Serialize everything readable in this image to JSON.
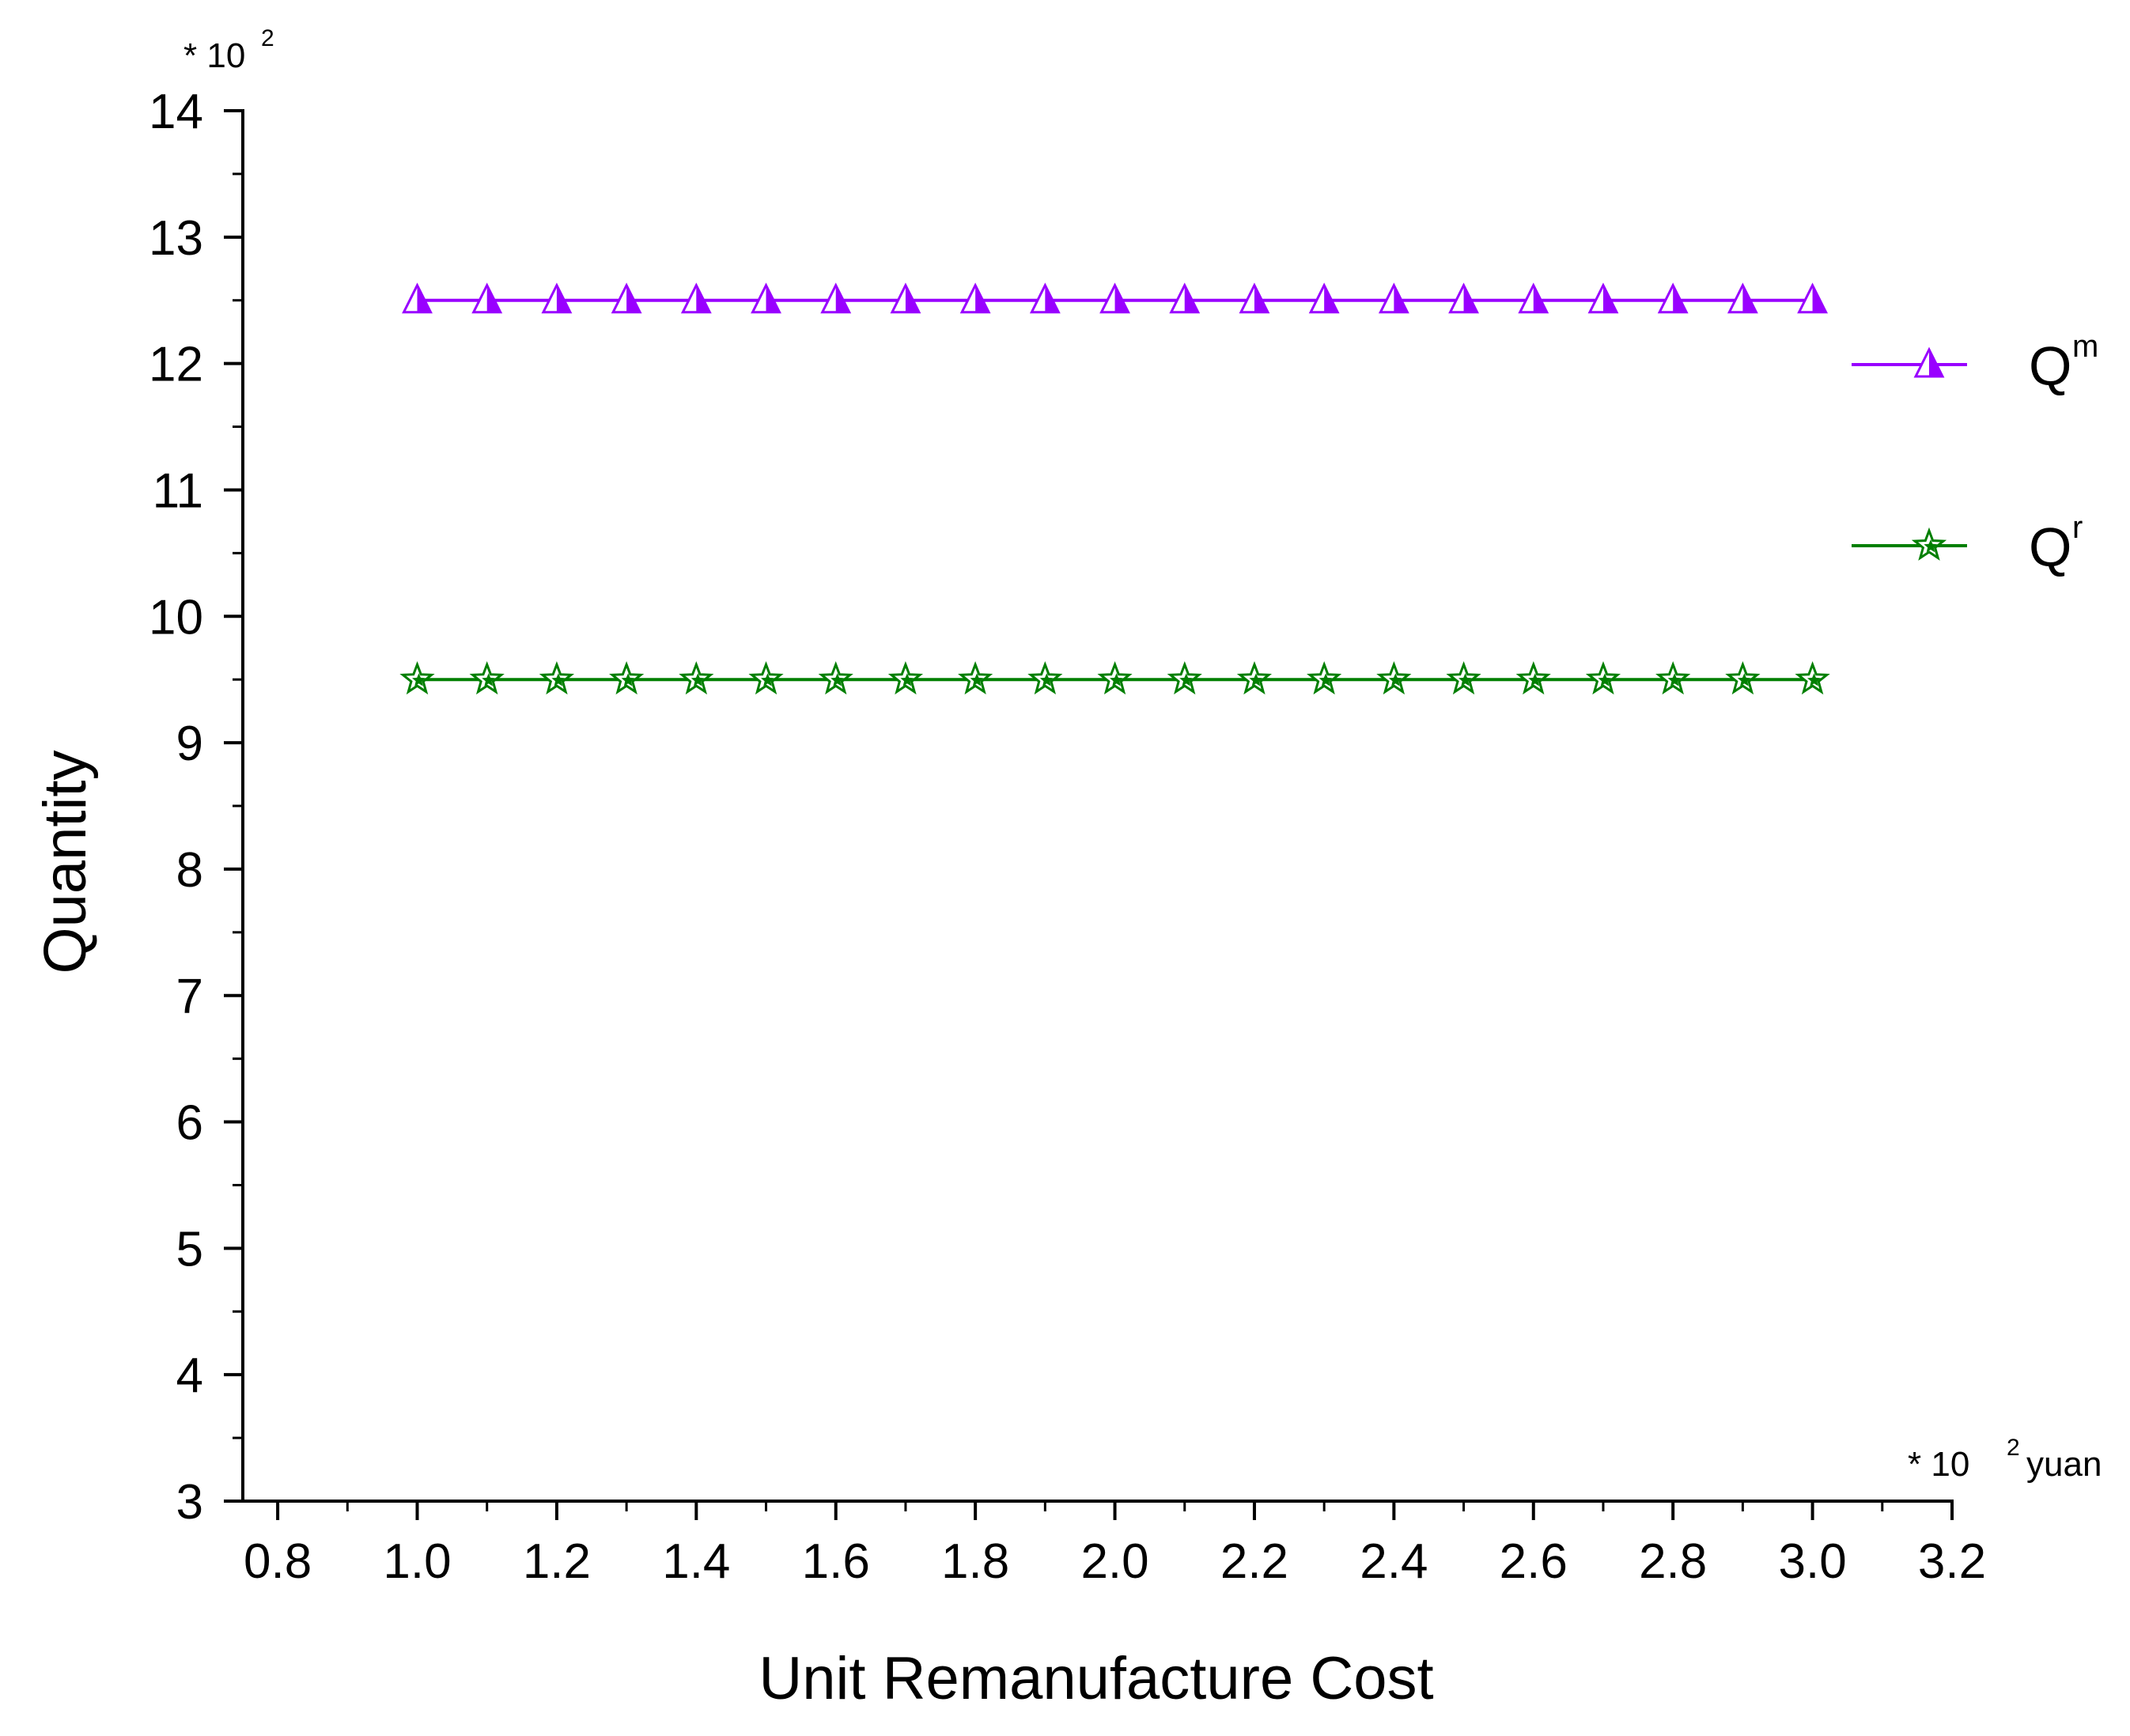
{
  "chart_data": {
    "type": "line",
    "title": "",
    "xlabel": "Unit Remanufacture Cost",
    "ylabel": "Quantity",
    "x_multiplier": {
      "prefix": "* 10",
      "exponent": "2",
      "unit": "yuan"
    },
    "y_multiplier": {
      "prefix": "* 10",
      "exponent": "2"
    },
    "xlim": [
      0.75,
      3.2
    ],
    "ylim": [
      3,
      14
    ],
    "x_ticks": [
      "0.8",
      "1.0",
      "1.2",
      "1.4",
      "1.6",
      "1.8",
      "2.0",
      "2.2",
      "2.4",
      "2.6",
      "2.8",
      "3.0",
      "3.2"
    ],
    "y_ticks": [
      "3",
      "4",
      "5",
      "6",
      "7",
      "8",
      "9",
      "10",
      "11",
      "12",
      "13",
      "14"
    ],
    "grid": false,
    "legend_position": "right",
    "x": [
      1.0,
      1.1,
      1.2,
      1.3,
      1.4,
      1.5,
      1.6,
      1.7,
      1.8,
      1.9,
      2.0,
      2.1,
      2.2,
      2.3,
      2.4,
      2.5,
      2.6,
      2.7,
      2.8,
      2.9,
      3.0
    ],
    "series": [
      {
        "name": "Q",
        "name_sup": "m",
        "marker": "triangle",
        "color": "#9900ff",
        "values": [
          12.5,
          12.5,
          12.5,
          12.5,
          12.5,
          12.5,
          12.5,
          12.5,
          12.5,
          12.5,
          12.5,
          12.5,
          12.5,
          12.5,
          12.5,
          12.5,
          12.5,
          12.5,
          12.5,
          12.5,
          12.5
        ]
      },
      {
        "name": "Q",
        "name_sup": "r",
        "marker": "star",
        "color": "#007f00",
        "values": [
          9.5,
          9.5,
          9.5,
          9.5,
          9.5,
          9.5,
          9.5,
          9.5,
          9.5,
          9.5,
          9.5,
          9.5,
          9.5,
          9.5,
          9.5,
          9.5,
          9.5,
          9.5,
          9.5,
          9.5,
          9.5
        ]
      }
    ]
  }
}
